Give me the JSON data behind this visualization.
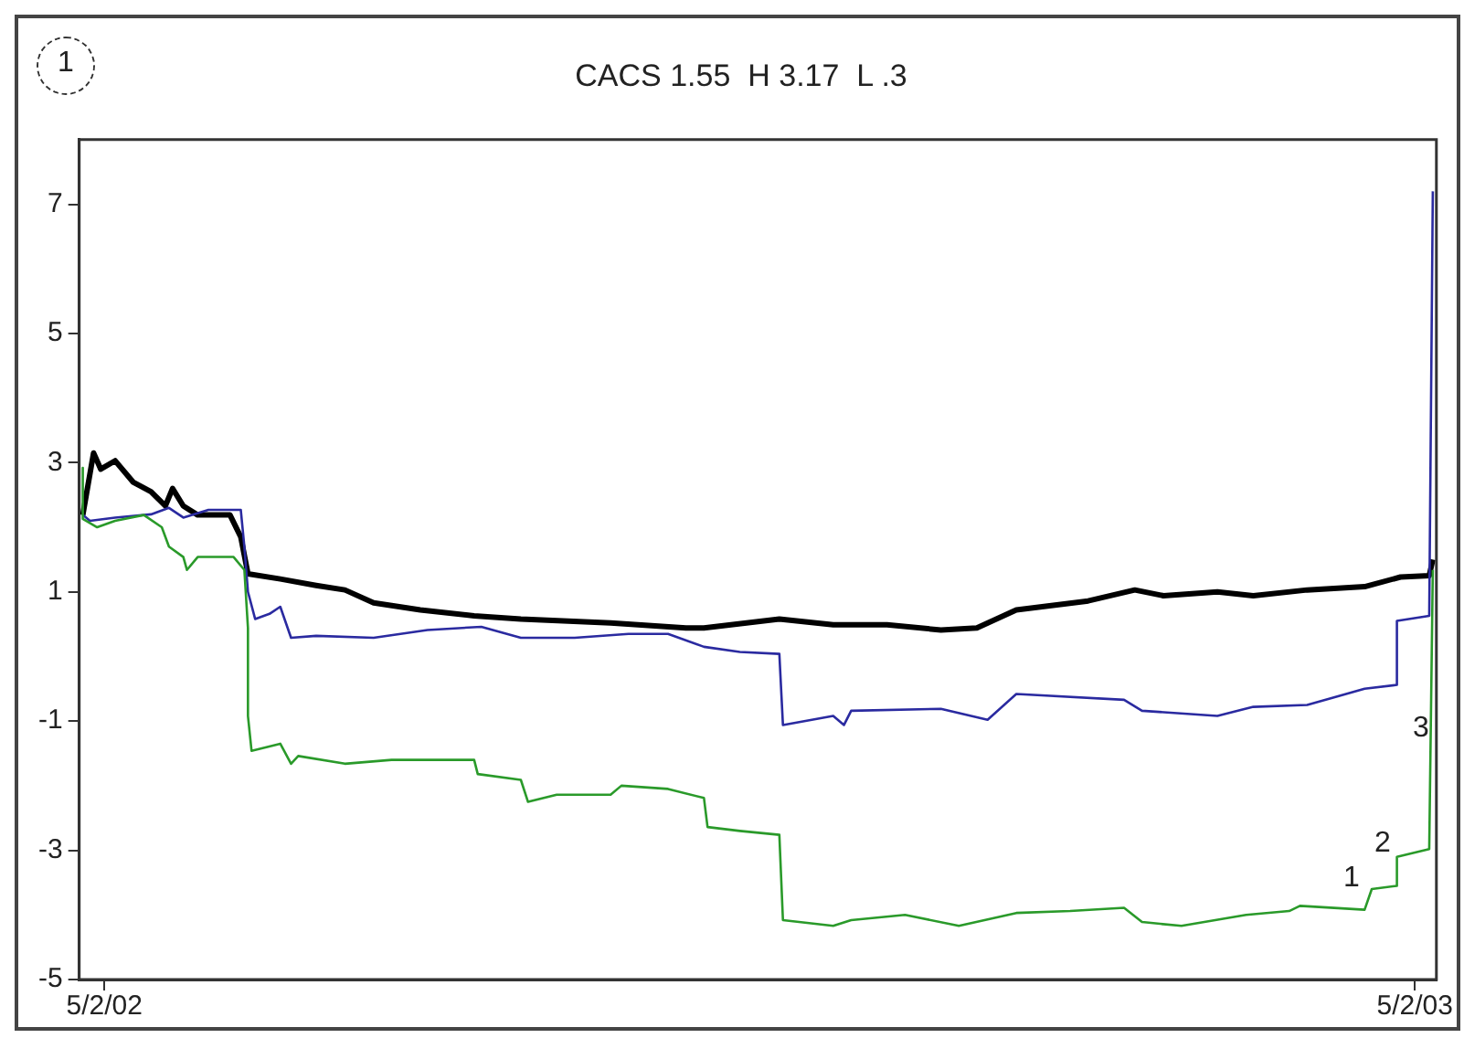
{
  "chart_data": {
    "type": "line",
    "title": "CACS 1.55  H 3.17  L .3",
    "annotations": [
      "1",
      "1",
      "2",
      "3"
    ],
    "xlim": [
      "2002-04-25",
      "2003-05-08"
    ],
    "xticks": [
      {
        "value": "2002-05-02",
        "label": "5/2/02"
      },
      {
        "value": "2003-05-02",
        "label": "5/2/03"
      }
    ],
    "ylim": [
      -5,
      8
    ],
    "yticks": [
      -5,
      -3,
      -1,
      1,
      3,
      5,
      7
    ],
    "grid": false,
    "legend": false,
    "marker": "none",
    "line_style": "solid",
    "series": [
      {
        "color": "#2a9a2a",
        "x": [
          "2002-04-26",
          "2002-04-26",
          "2002-04-30",
          "2002-05-05",
          "2002-05-13",
          "2002-05-18",
          "2002-05-20",
          "2002-05-24",
          "2002-05-25",
          "2002-05-28",
          "2002-06-07",
          "2002-06-10",
          "2002-06-11",
          "2002-06-11",
          "2002-06-12",
          "2002-06-20",
          "2002-06-23",
          "2002-06-25",
          "2002-07-08",
          "2002-07-21",
          "2002-08-13",
          "2002-08-14",
          "2002-08-26",
          "2002-08-28",
          "2002-09-05",
          "2002-09-20",
          "2002-09-23",
          "2002-10-06",
          "2002-10-16",
          "2002-10-17",
          "2002-10-26",
          "2002-11-06",
          "2002-11-07",
          "2002-11-21",
          "2002-11-26",
          "2002-12-11",
          "2002-12-26",
          "2003-01-11",
          "2003-01-26",
          "2003-02-10",
          "2003-02-15",
          "2003-02-26",
          "2003-03-16",
          "2003-03-28",
          "2003-03-31",
          "2003-04-18",
          "2003-04-20",
          "2003-04-27",
          "2003-04-27",
          "2003-05-06",
          "2003-05-07"
        ],
        "values": [
          2.92,
          2.13,
          2.0,
          2.1,
          2.19,
          2.0,
          1.7,
          1.54,
          1.34,
          1.54,
          1.54,
          1.34,
          0.44,
          -0.92,
          -1.46,
          -1.35,
          -1.66,
          -1.54,
          -1.66,
          -1.6,
          -1.6,
          -1.82,
          -1.91,
          -2.25,
          -2.14,
          -2.14,
          -2.0,
          -2.05,
          -2.19,
          -2.64,
          -2.7,
          -2.76,
          -4.08,
          -4.17,
          -4.08,
          -4.0,
          -4.17,
          -3.97,
          -3.94,
          -3.89,
          -4.11,
          -4.17,
          -4.0,
          -3.94,
          -3.86,
          -3.92,
          -3.6,
          -3.55,
          -3.1,
          -2.98,
          1.34
        ]
      },
      {
        "color": "#2a2aa0",
        "x": [
          "2002-04-26",
          "2002-04-28",
          "2002-05-05",
          "2002-05-15",
          "2002-05-20",
          "2002-05-24",
          "2002-05-31",
          "2002-06-09",
          "2002-06-10",
          "2002-06-11",
          "2002-06-13",
          "2002-06-17",
          "2002-06-20",
          "2002-06-23",
          "2002-06-30",
          "2002-07-16",
          "2002-07-31",
          "2002-08-15",
          "2002-08-26",
          "2002-09-10",
          "2002-09-25",
          "2002-10-06",
          "2002-10-16",
          "2002-10-26",
          "2002-11-06",
          "2002-11-07",
          "2002-11-21",
          "2002-11-24",
          "2002-11-26",
          "2002-12-21",
          "2003-01-03",
          "2003-01-11",
          "2003-02-10",
          "2003-02-15",
          "2003-03-08",
          "2003-03-18",
          "2003-04-02",
          "2003-04-18",
          "2003-04-27",
          "2003-04-27",
          "2003-05-06",
          "2003-05-07"
        ],
        "values": [
          2.19,
          2.1,
          2.15,
          2.2,
          2.3,
          2.15,
          2.27,
          2.27,
          1.7,
          1.0,
          0.58,
          0.66,
          0.77,
          0.29,
          0.32,
          0.29,
          0.41,
          0.46,
          0.29,
          0.29,
          0.35,
          0.35,
          0.15,
          0.07,
          0.04,
          -1.06,
          -0.92,
          -1.06,
          -0.84,
          -0.81,
          -0.98,
          -0.58,
          -0.67,
          -0.84,
          -0.92,
          -0.78,
          -0.75,
          -0.5,
          -0.44,
          0.55,
          0.63,
          7.2
        ]
      },
      {
        "color": "#000000",
        "x": [
          "2002-04-26",
          "2002-04-29",
          "2002-05-01",
          "2002-05-05",
          "2002-05-10",
          "2002-05-15",
          "2002-05-19",
          "2002-05-21",
          "2002-05-24",
          "2002-05-28",
          "2002-06-06",
          "2002-06-09",
          "2002-06-11",
          "2002-06-20",
          "2002-06-30",
          "2002-07-08",
          "2002-07-16",
          "2002-07-29",
          "2002-08-13",
          "2002-08-26",
          "2002-09-20",
          "2002-10-11",
          "2002-10-16",
          "2002-11-06",
          "2002-11-21",
          "2002-12-06",
          "2002-12-21",
          "2002-12-31",
          "2003-01-11",
          "2003-01-31",
          "2003-02-13",
          "2003-02-21",
          "2003-03-08",
          "2003-03-18",
          "2003-04-02",
          "2003-04-18",
          "2003-04-28",
          "2003-05-06",
          "2003-05-07"
        ],
        "values": [
          2.19,
          3.15,
          2.9,
          3.03,
          2.7,
          2.55,
          2.33,
          2.6,
          2.33,
          2.19,
          2.19,
          1.85,
          1.28,
          1.2,
          1.1,
          1.03,
          0.83,
          0.72,
          0.63,
          0.58,
          0.52,
          0.44,
          0.44,
          0.58,
          0.49,
          0.49,
          0.41,
          0.44,
          0.72,
          0.86,
          1.03,
          0.94,
          1.0,
          0.94,
          1.03,
          1.08,
          1.23,
          1.25,
          1.5
        ]
      }
    ]
  }
}
